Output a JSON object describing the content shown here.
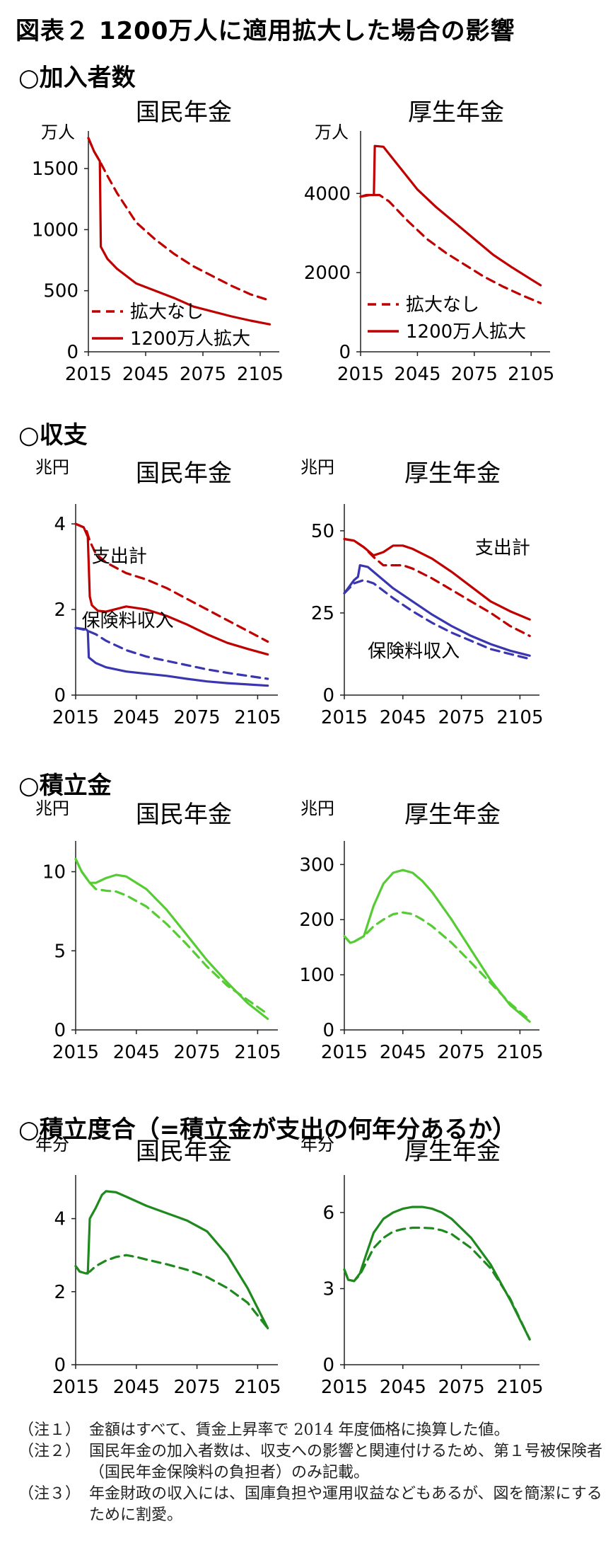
{
  "title": "図表２ 1200万人に適用拡大した場合の影響",
  "sections": {
    "s1": "○加入者数",
    "s2": "○収支",
    "s3": "○積立金",
    "s4": "○積立度合（=積立金が支出の何年分あるか）"
  },
  "colors": {
    "red": "#C00000",
    "blue": "#3A36B0",
    "lightgreen": "#55CC33",
    "darkgreen": "#1E8A1E"
  },
  "chart_data": [
    {
      "id": "c1",
      "type": "line",
      "title": "国民年金",
      "unit": "万人",
      "xticks": [
        2015,
        2045,
        2075,
        2105
      ],
      "yticks": [
        0,
        500,
        1000,
        1500
      ],
      "ylim": [
        0,
        1750
      ],
      "series": [
        {
          "name": "拡大なし",
          "color": "red",
          "dash": true,
          "x": [
            2015,
            2018,
            2021,
            2025,
            2030,
            2040,
            2050,
            2060,
            2070,
            2080,
            2090,
            2100,
            2110
          ],
          "y": [
            1750,
            1640,
            1560,
            1440,
            1300,
            1060,
            920,
            800,
            700,
            620,
            540,
            470,
            420
          ]
        },
        {
          "name": "1200万人拡大",
          "color": "red",
          "dash": false,
          "x": [
            2015,
            2018,
            2021,
            2021.5,
            2025,
            2030,
            2040,
            2050,
            2060,
            2070,
            2080,
            2090,
            2100,
            2110
          ],
          "y": [
            1750,
            1640,
            1560,
            860,
            760,
            680,
            560,
            500,
            440,
            370,
            330,
            290,
            255,
            225
          ]
        }
      ],
      "legend": [
        {
          "label": "拡大なし",
          "dash": true
        },
        {
          "label": "1200万人拡大",
          "dash": false
        }
      ],
      "labels": []
    },
    {
      "id": "c2",
      "type": "line",
      "title": "厚生年金",
      "unit": "万人",
      "xticks": [
        2015,
        2045,
        2075,
        2105
      ],
      "yticks": [
        0,
        2000,
        4000
      ],
      "ylim": [
        0,
        5400
      ],
      "series": [
        {
          "name": "拡大なし",
          "color": "red",
          "dash": true,
          "x": [
            2015,
            2020,
            2025,
            2030,
            2040,
            2050,
            2060,
            2070,
            2080,
            2090,
            2100,
            2110
          ],
          "y": [
            3920,
            3960,
            3960,
            3800,
            3300,
            2850,
            2500,
            2200,
            1900,
            1650,
            1430,
            1230
          ]
        },
        {
          "name": "1200万人拡大",
          "color": "red",
          "dash": false,
          "x": [
            2015,
            2018,
            2022,
            2022.5,
            2027,
            2030,
            2035,
            2045,
            2055,
            2065,
            2075,
            2085,
            2095,
            2105,
            2110
          ],
          "y": [
            3920,
            3960,
            3960,
            5200,
            5180,
            5000,
            4700,
            4100,
            3650,
            3250,
            2850,
            2450,
            2130,
            1830,
            1680
          ]
        }
      ],
      "legend": [
        {
          "label": "拡大なし",
          "dash": true
        },
        {
          "label": "1200万人拡大",
          "dash": false
        }
      ],
      "labels": []
    },
    {
      "id": "c3",
      "type": "line",
      "title": "国民年金",
      "unit": "兆円",
      "xticks": [
        2015,
        2045,
        2075,
        2105
      ],
      "yticks": [
        0,
        2,
        4
      ],
      "ylim": [
        0,
        4.3
      ],
      "series": [
        {
          "name": "支出計（拡大なし）",
          "color": "red",
          "dash": true,
          "x": [
            2015,
            2020,
            2022,
            2025,
            2030,
            2040,
            2050,
            2060,
            2070,
            2080,
            2090,
            2100,
            2110
          ],
          "y": [
            4.0,
            3.9,
            3.6,
            3.3,
            3.1,
            2.85,
            2.7,
            2.5,
            2.25,
            2.0,
            1.75,
            1.5,
            1.25
          ]
        },
        {
          "name": "支出計（1200万人拡大）",
          "color": "red",
          "dash": false,
          "x": [
            2015,
            2019,
            2021,
            2022,
            2023,
            2026,
            2030,
            2040,
            2050,
            2060,
            2070,
            2080,
            2090,
            2100,
            2110
          ],
          "y": [
            4.0,
            3.92,
            3.7,
            2.3,
            2.1,
            1.97,
            1.95,
            2.07,
            2.0,
            1.85,
            1.65,
            1.42,
            1.22,
            1.08,
            0.95
          ]
        },
        {
          "name": "保険料収入（拡大なし）",
          "color": "blue",
          "dash": true,
          "x": [
            2015,
            2020,
            2025,
            2030,
            2040,
            2050,
            2060,
            2070,
            2080,
            2090,
            2100,
            2110
          ],
          "y": [
            1.57,
            1.52,
            1.42,
            1.27,
            1.05,
            0.9,
            0.8,
            0.7,
            0.6,
            0.52,
            0.45,
            0.38
          ]
        },
        {
          "name": "保険料収入（1200万人拡大）",
          "color": "blue",
          "dash": false,
          "x": [
            2015,
            2020,
            2021,
            2021.5,
            2025,
            2030,
            2040,
            2050,
            2060,
            2070,
            2080,
            2090,
            2100,
            2110
          ],
          "y": [
            1.57,
            1.54,
            1.5,
            0.88,
            0.75,
            0.65,
            0.55,
            0.5,
            0.45,
            0.38,
            0.32,
            0.28,
            0.25,
            0.22
          ]
        }
      ],
      "legend": [],
      "labels": [
        {
          "text": "支出計",
          "at": [
            2023,
            3.1
          ],
          "anchor": "start"
        },
        {
          "text": "保険料収入",
          "at": [
            2018,
            1.6
          ],
          "anchor": "start"
        }
      ]
    },
    {
      "id": "c4",
      "type": "line",
      "title": "厚生年金",
      "unit": "兆円",
      "xticks": [
        2015,
        2045,
        2075,
        2105
      ],
      "yticks": [
        0,
        25,
        50
      ],
      "ylim": [
        0,
        56
      ],
      "series": [
        {
          "name": "支出計（拡大なし）",
          "color": "red",
          "dash": true,
          "x": [
            2015,
            2020,
            2025,
            2030,
            2035,
            2040,
            2045,
            2050,
            2060,
            2070,
            2080,
            2090,
            2100,
            2110
          ],
          "y": [
            47.5,
            47,
            45,
            42,
            39.5,
            39.5,
            39.5,
            38.5,
            35.5,
            32,
            28.5,
            25,
            21,
            18
          ]
        },
        {
          "name": "支出計（1200万人拡大）",
          "color": "red",
          "dash": false,
          "x": [
            2015,
            2020,
            2025,
            2030,
            2035,
            2040,
            2045,
            2050,
            2060,
            2070,
            2080,
            2090,
            2100,
            2110
          ],
          "y": [
            47.5,
            47,
            45,
            42.5,
            43.5,
            45.5,
            45.5,
            44.5,
            41.5,
            37.5,
            33,
            28.5,
            25.5,
            23
          ]
        },
        {
          "name": "保険料収入（拡大なし）",
          "color": "blue",
          "dash": true,
          "x": [
            2015,
            2020,
            2025,
            2030,
            2040,
            2050,
            2060,
            2070,
            2080,
            2090,
            2100,
            2110
          ],
          "y": [
            31,
            34,
            35,
            34,
            29.5,
            25.5,
            22,
            19,
            16.5,
            14,
            12.5,
            11
          ]
        },
        {
          "name": "保険料収入（1200万人拡大）",
          "color": "blue",
          "dash": false,
          "x": [
            2015,
            2020,
            2022,
            2023,
            2027,
            2030,
            2040,
            2050,
            2060,
            2070,
            2080,
            2090,
            2100,
            2110
          ],
          "y": [
            31,
            35,
            36,
            39.5,
            39,
            37.5,
            32.5,
            28.5,
            24.5,
            21,
            18,
            15.5,
            13.5,
            12
          ]
        }
      ],
      "legend": [],
      "labels": [
        {
          "text": "支出計",
          "at": [
            2082,
            43
          ],
          "anchor": "start"
        },
        {
          "text": "保険料収入",
          "at": [
            2027,
            11.5
          ],
          "anchor": "start"
        }
      ]
    },
    {
      "id": "c5",
      "type": "line",
      "title": "国民年金",
      "unit": "兆円",
      "xticks": [
        2015,
        2045,
        2075,
        2105
      ],
      "yticks": [
        0,
        5,
        10
      ],
      "ylim": [
        0,
        11.5
      ],
      "series": [
        {
          "name": "拡大なし",
          "color": "lightgreen",
          "dash": true,
          "x": [
            2015,
            2018,
            2022,
            2025,
            2030,
            2035,
            2040,
            2050,
            2060,
            2070,
            2080,
            2090,
            2100,
            2110
          ],
          "y": [
            10.8,
            10.0,
            9.3,
            8.9,
            8.8,
            8.75,
            8.5,
            7.8,
            6.7,
            5.4,
            4.0,
            2.8,
            1.9,
            1.0
          ]
        },
        {
          "name": "1200万人拡大",
          "color": "lightgreen",
          "dash": false,
          "x": [
            2015,
            2018,
            2022,
            2025,
            2030,
            2035,
            2040,
            2050,
            2060,
            2070,
            2080,
            2090,
            2100,
            2110
          ],
          "y": [
            10.8,
            10.0,
            9.3,
            9.3,
            9.6,
            9.8,
            9.7,
            8.9,
            7.6,
            6.0,
            4.4,
            3.0,
            1.7,
            0.7
          ]
        }
      ],
      "legend": [],
      "labels": []
    },
    {
      "id": "c6",
      "type": "line",
      "title": "厚生年金",
      "unit": "兆円",
      "xticks": [
        2015,
        2045,
        2075,
        2105
      ],
      "yticks": [
        0,
        100,
        200,
        300
      ],
      "ylim": [
        0,
        330
      ],
      "series": [
        {
          "name": "拡大なし",
          "color": "lightgreen",
          "dash": true,
          "x": [
            2015,
            2018,
            2020,
            2025,
            2030,
            2035,
            2040,
            2045,
            2050,
            2055,
            2060,
            2070,
            2080,
            2090,
            2100,
            2110
          ],
          "y": [
            170,
            158,
            160,
            170,
            188,
            200,
            210,
            213,
            210,
            200,
            188,
            158,
            122,
            85,
            48,
            18
          ]
        },
        {
          "name": "1200万人拡大",
          "color": "lightgreen",
          "dash": false,
          "x": [
            2015,
            2018,
            2020,
            2025,
            2030,
            2035,
            2040,
            2045,
            2050,
            2055,
            2060,
            2070,
            2080,
            2090,
            2100,
            2110
          ],
          "y": [
            170,
            158,
            160,
            170,
            225,
            265,
            285,
            290,
            285,
            270,
            250,
            200,
            145,
            90,
            45,
            15
          ]
        }
      ],
      "legend": [],
      "labels": []
    },
    {
      "id": "c7",
      "type": "line",
      "title": "国民年金",
      "unit": "年分",
      "xticks": [
        2015,
        2045,
        2075,
        2105
      ],
      "yticks": [
        0,
        2,
        4
      ],
      "ylim": [
        0,
        5.0
      ],
      "series": [
        {
          "name": "拡大なし",
          "color": "darkgreen",
          "dash": true,
          "x": [
            2015,
            2017,
            2020,
            2022,
            2025,
            2030,
            2035,
            2040,
            2045,
            2050,
            2060,
            2070,
            2080,
            2090,
            2100,
            2110
          ],
          "y": [
            2.7,
            2.55,
            2.5,
            2.55,
            2.7,
            2.85,
            2.95,
            3.0,
            2.95,
            2.88,
            2.75,
            2.6,
            2.4,
            2.1,
            1.7,
            1.0
          ]
        },
        {
          "name": "1200万人拡大",
          "color": "darkgreen",
          "dash": false,
          "x": [
            2015,
            2017,
            2020,
            2021,
            2022,
            2025,
            2028,
            2030,
            2035,
            2040,
            2050,
            2060,
            2070,
            2080,
            2090,
            2100,
            2110
          ],
          "y": [
            2.7,
            2.55,
            2.5,
            2.5,
            4.0,
            4.3,
            4.65,
            4.75,
            4.72,
            4.6,
            4.35,
            4.15,
            3.95,
            3.65,
            3.0,
            2.1,
            1.0
          ]
        }
      ],
      "legend": [],
      "labels": []
    },
    {
      "id": "c8",
      "type": "line",
      "title": "厚生年金",
      "unit": "年分",
      "xticks": [
        2015,
        2045,
        2075,
        2105
      ],
      "yticks": [
        0,
        3,
        6
      ],
      "ylim": [
        0,
        7.2
      ],
      "series": [
        {
          "name": "拡大なし",
          "color": "darkgreen",
          "dash": true,
          "x": [
            2015,
            2017,
            2020,
            2023,
            2026,
            2030,
            2035,
            2040,
            2045,
            2050,
            2055,
            2060,
            2065,
            2070,
            2080,
            2090,
            2100,
            2110
          ],
          "y": [
            3.75,
            3.35,
            3.3,
            3.55,
            4.0,
            4.6,
            5.0,
            5.25,
            5.35,
            5.4,
            5.4,
            5.38,
            5.3,
            5.15,
            4.6,
            3.8,
            2.6,
            1.0
          ]
        },
        {
          "name": "1200万人拡大",
          "color": "darkgreen",
          "dash": false,
          "x": [
            2015,
            2017,
            2020,
            2023,
            2026,
            2030,
            2035,
            2040,
            2045,
            2050,
            2055,
            2060,
            2065,
            2070,
            2080,
            2090,
            2100,
            2110
          ],
          "y": [
            3.75,
            3.35,
            3.3,
            3.6,
            4.3,
            5.2,
            5.75,
            6.0,
            6.15,
            6.22,
            6.22,
            6.15,
            6.0,
            5.75,
            5.0,
            3.95,
            2.55,
            1.0
          ]
        }
      ],
      "legend": [],
      "labels": []
    }
  ],
  "notes": [
    {
      "label": "（注１）",
      "text": "金額はすべて、賃金上昇率で 2014 年度価格に換算した値。"
    },
    {
      "label": "（注２）",
      "text": "国民年金の加入者数は、収支への影響と関連付けるため、第１号被保険者（国民年金保険料の負担者）のみ記載。"
    },
    {
      "label": "（注３）",
      "text": "年金財政の収入には、国庫負担や運用収益などもあるが、図を簡潔にするために割愛。"
    }
  ]
}
